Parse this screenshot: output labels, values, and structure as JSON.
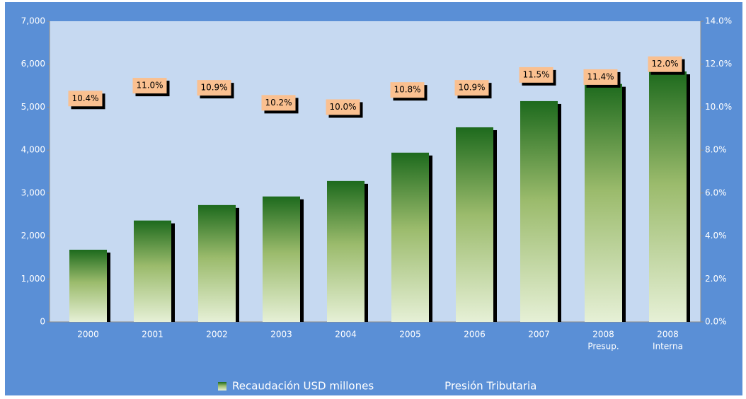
{
  "chart_data": {
    "type": "bar",
    "categories": [
      "2000",
      "2001",
      "2002",
      "2003",
      "2004",
      "2005",
      "2006",
      "2007",
      [
        "2008",
        "Presup."
      ],
      [
        "2008",
        "Interna"
      ]
    ],
    "series": [
      {
        "name": "Recaudación USD millones",
        "color": "#1d6a1d",
        "values": [
          1680,
          2360,
          2720,
          2920,
          3280,
          3940,
          4530,
          5140,
          5540,
          5830
        ]
      },
      {
        "name": "Presión Tributaria",
        "axis": "y2",
        "values": [
          10.4,
          11.0,
          10.9,
          10.2,
          10.0,
          10.8,
          10.9,
          11.5,
          11.4,
          12.0
        ],
        "value_labels": [
          "10.4%",
          "11.0%",
          "10.9%",
          "10.2%",
          "10.0%",
          "10.8%",
          "10.9%",
          "11.5%",
          "11.4%",
          "12.0%"
        ]
      }
    ],
    "ylim": [
      0,
      7000
    ],
    "yticks": [
      0,
      {
        "value": 1000,
        "label": "1,000"
      },
      {
        "value": 2000,
        "label": "2,000"
      },
      {
        "value": 3000,
        "label": "3,000"
      },
      {
        "value": 4000,
        "label": "4,000"
      },
      {
        "value": 5000,
        "label": "5,000"
      },
      {
        "value": 6000,
        "label": "6,000"
      },
      {
        "value": 7000,
        "label": "7,000"
      }
    ],
    "y2lim": [
      0,
      14
    ],
    "y2ticks": [
      {
        "value": 0,
        "label": "0.0%"
      },
      {
        "value": 2,
        "label": "2.0%"
      },
      {
        "value": 4,
        "label": "4.0%"
      },
      {
        "value": 6,
        "label": "6.0%"
      },
      {
        "value": 8,
        "label": "8.0%"
      },
      {
        "value": 10,
        "label": "10.0%"
      },
      {
        "value": 12,
        "label": "12.0%"
      },
      {
        "value": 14,
        "label": "14.0%"
      }
    ],
    "legend": "bottom",
    "grid": false
  }
}
